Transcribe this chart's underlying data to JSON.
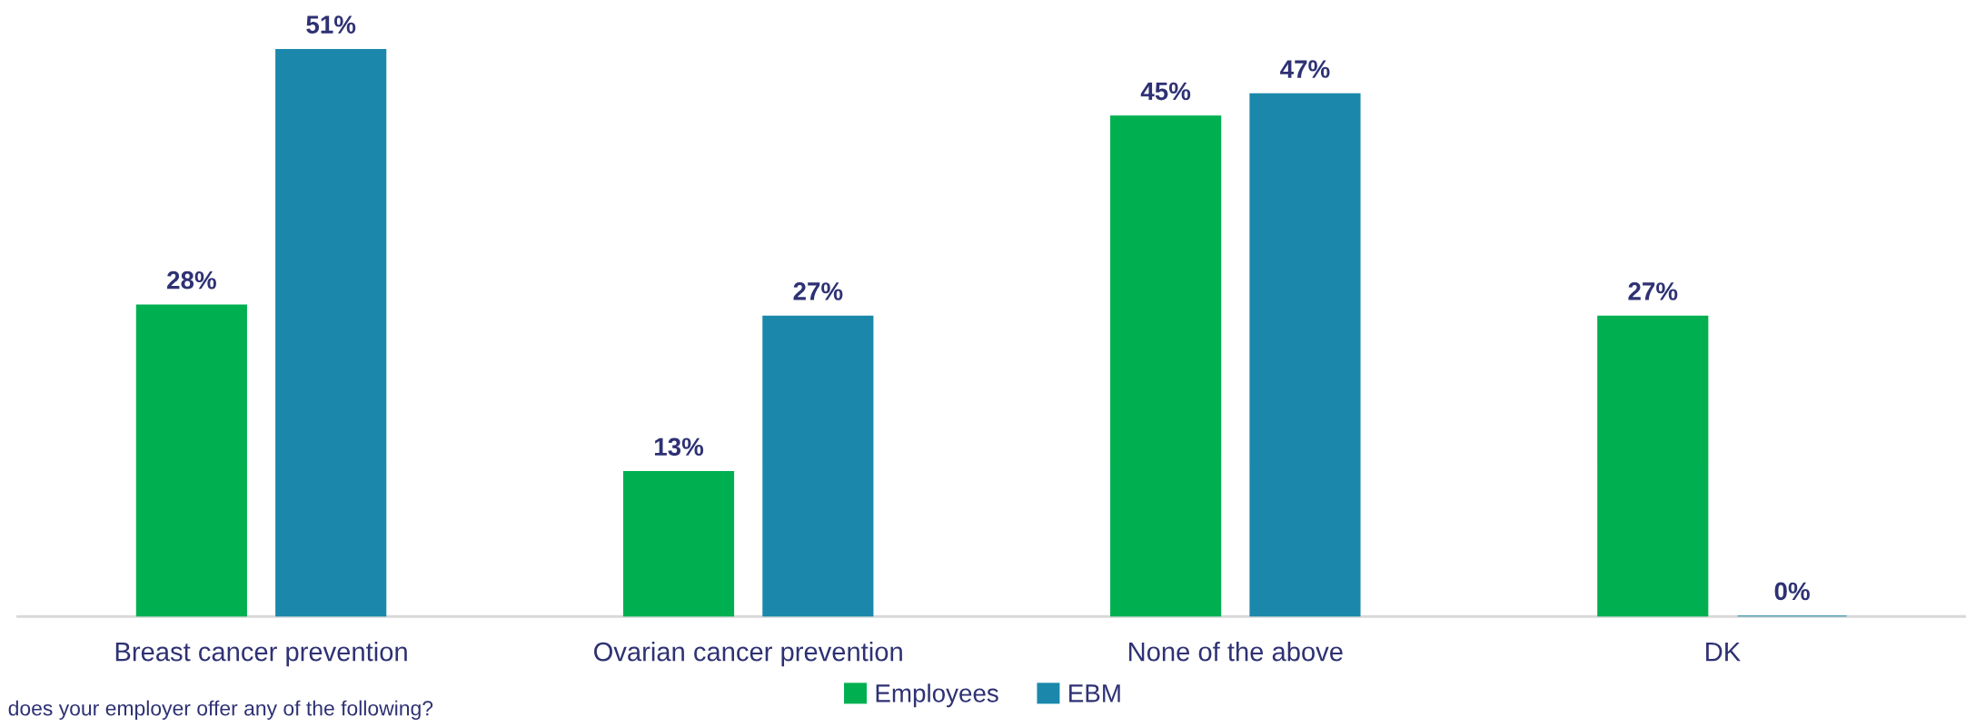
{
  "chart_data": {
    "type": "bar",
    "categories": [
      "Breast cancer prevention",
      "Ovarian cancer prevention",
      "None of the above",
      "DK"
    ],
    "series": [
      {
        "name": "Employees",
        "color": "#00b050",
        "values": [
          28,
          13,
          45,
          27
        ],
        "value_labels": [
          "28%",
          "13%",
          "45%",
          "27%"
        ]
      },
      {
        "name": "EBM",
        "color": "#1b88ab",
        "values": [
          51,
          27,
          47,
          0
        ],
        "value_labels": [
          "51%",
          "27%",
          "47%",
          "0%"
        ]
      }
    ],
    "tick_labels": "x",
    "legend": "bottom",
    "annotations": [
      "does your employer offer any of the following?"
    ]
  }
}
